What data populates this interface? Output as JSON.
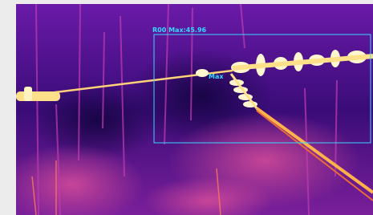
{
  "roi": {
    "label": "R00 Max:45.96"
  },
  "hotspot": {
    "label": "Max"
  }
}
